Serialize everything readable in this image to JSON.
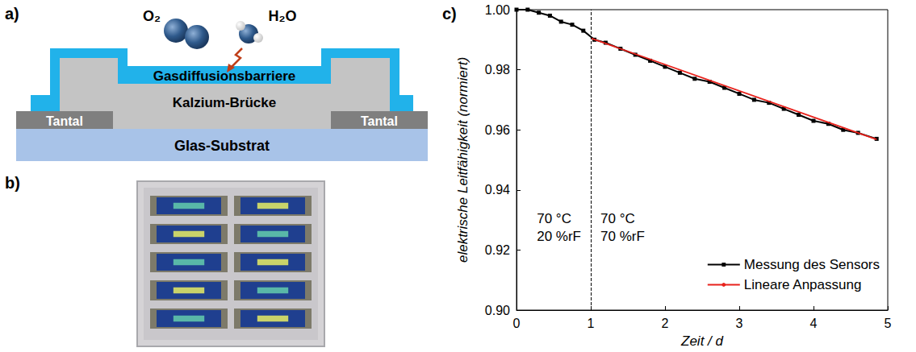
{
  "panels": {
    "a": {
      "letter": "a)",
      "molecules": [
        "O₂",
        "H₂O"
      ],
      "layers": {
        "barrier": "Gasdiffusionsbarriere",
        "bridge": "Kalzium-Brücke",
        "contact_left": "Tantal",
        "contact_right": "Tantal",
        "substrate": "Glas-Substrat"
      }
    },
    "b": {
      "letter": "b)",
      "sensor_rows": 5,
      "sensor_columns": 2
    },
    "c": {
      "letter": "c)"
    }
  },
  "chart_data": {
    "type": "line",
    "xlabel": "Zeit / d",
    "ylabel": "elektrische Leitfähigkeit (normiert)",
    "xlim": [
      0,
      5
    ],
    "xticks": [
      0,
      1,
      2,
      3,
      4,
      5
    ],
    "ylim": [
      0.9,
      1.0
    ],
    "yticks": [
      {
        "value": 0.9,
        "label": "0.90"
      },
      {
        "value": 0.92,
        "label": "0.92"
      },
      {
        "value": 0.94,
        "label": "0.94"
      },
      {
        "value": 0.96,
        "label": "0.96"
      },
      {
        "value": 0.98,
        "label": "0.98"
      },
      {
        "value": 1.0,
        "label": "1.00"
      }
    ],
    "grid": false,
    "legend": "lower right",
    "phase_change_x": 1,
    "annotations": [
      [
        "70 °C",
        "20 %rF"
      ],
      [
        "70 °C",
        "70 %rF"
      ]
    ],
    "series": [
      {
        "name": "Messung des Sensors",
        "color": "#000000",
        "marker": "square",
        "line_style": "solid",
        "x": [
          0,
          0.15,
          0.3,
          0.45,
          0.6,
          0.75,
          0.9,
          1.05,
          1.2,
          1.4,
          1.6,
          1.8,
          2.0,
          2.2,
          2.4,
          2.6,
          2.8,
          3.0,
          3.2,
          3.4,
          3.6,
          3.8,
          4.0,
          4.2,
          4.4,
          4.6,
          4.85
        ],
        "values": [
          1.0,
          1.0,
          0.999,
          0.998,
          0.996,
          0.995,
          0.993,
          0.99,
          0.989,
          0.987,
          0.985,
          0.983,
          0.981,
          0.979,
          0.977,
          0.976,
          0.974,
          0.972,
          0.97,
          0.969,
          0.967,
          0.965,
          0.963,
          0.962,
          0.96,
          0.959,
          0.957
        ]
      },
      {
        "name": "Lineare Anpassung",
        "color": "#e8221c",
        "marker": "none",
        "line_style": "solid",
        "x": [
          1.0,
          4.85
        ],
        "values": [
          0.9905,
          0.9568
        ]
      }
    ]
  }
}
